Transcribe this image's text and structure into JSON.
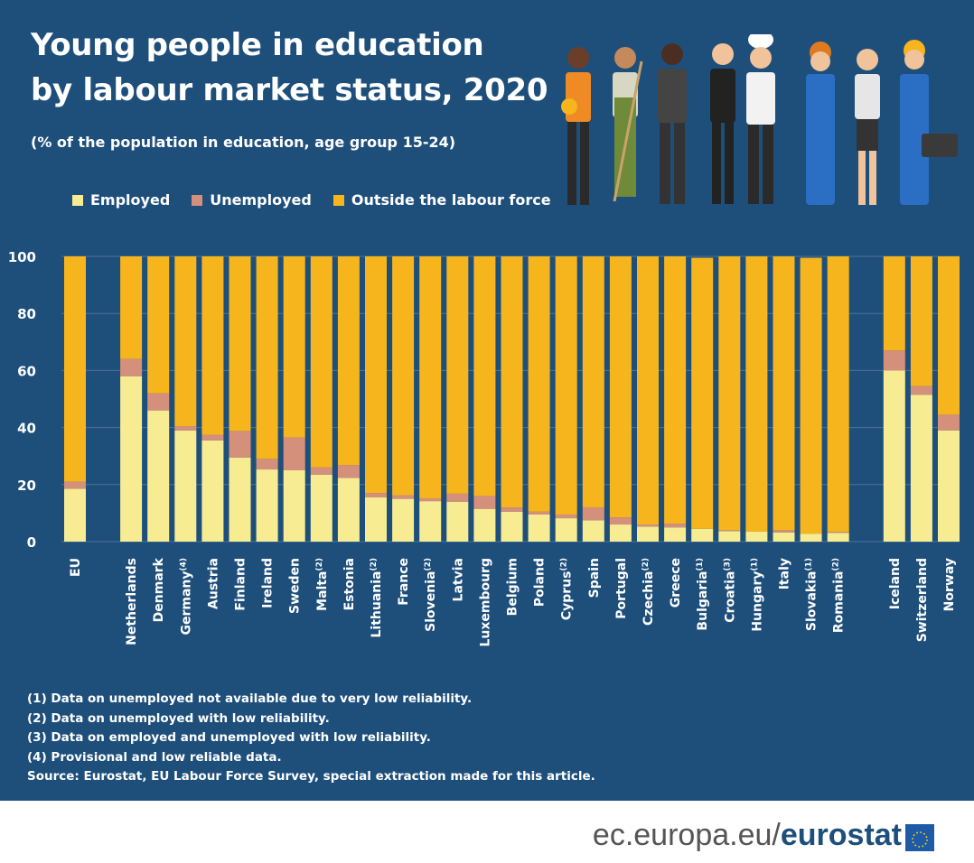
{
  "header": {
    "title_line1": "Young people in education",
    "title_line2": "by labour market status, 2020",
    "subtitle": "(% of the population in education, age group 15-24)"
  },
  "legend": [
    {
      "label": "Employed",
      "color": "#f7ec92"
    },
    {
      "label": "Unemployed",
      "color": "#d4907a"
    },
    {
      "label": "Outside the labour force",
      "color": "#f6b51c"
    }
  ],
  "colors": {
    "background": "#1e4f7b",
    "employed": "#f7ec92",
    "unemployed": "#d4907a",
    "outside": "#f6b51c",
    "gridline": "#4a7299"
  },
  "chart_data": {
    "type": "bar",
    "stacked": true,
    "ylim": [
      0,
      100
    ],
    "yticks": [
      0,
      20,
      40,
      60,
      80,
      100
    ],
    "grid": true,
    "groups": [
      [
        "EU"
      ],
      [
        "Netherlands",
        "Denmark",
        "Germany",
        "Austria",
        "Finland",
        "Ireland",
        "Sweden",
        "Malta",
        "Estonia",
        "Lithuania",
        "France",
        "Slovenia",
        "Latvia",
        "Luxembourg",
        "Belgium",
        "Poland",
        "Cyprus",
        "Spain",
        "Portugal",
        "Czechia",
        "Greece",
        "Bulgaria",
        "Croatia",
        "Hungary",
        "Italy",
        "Slovakia",
        "Romania"
      ],
      [
        "Iceland",
        "Switzerland",
        "Norway"
      ]
    ],
    "categories": [
      "EU",
      "Netherlands",
      "Denmark",
      "Germany",
      "Austria",
      "Finland",
      "Ireland",
      "Sweden",
      "Malta",
      "Estonia",
      "Lithuania",
      "France",
      "Slovenia",
      "Latvia",
      "Luxembourg",
      "Belgium",
      "Poland",
      "Cyprus",
      "Spain",
      "Portugal",
      "Czechia",
      "Greece",
      "Bulgaria",
      "Croatia",
      "Hungary",
      "Italy",
      "Slovakia",
      "Romania",
      "Iceland",
      "Switzerland",
      "Norway"
    ],
    "category_notes": [
      "",
      "",
      "",
      "(4)",
      "",
      "",
      "",
      "",
      "(2)",
      "",
      "(2)",
      "",
      "(2)",
      "",
      "",
      "",
      "",
      "(2)",
      "",
      "",
      "(2)",
      "",
      "(1)",
      "(3)",
      "(1)",
      "",
      "(1)",
      "(2)",
      "",
      "",
      ""
    ],
    "series": [
      {
        "name": "Employed",
        "values": [
          18.5,
          58.0,
          46.0,
          39.0,
          35.5,
          29.5,
          25.3,
          25.0,
          23.5,
          22.3,
          15.5,
          15.0,
          14.2,
          14.0,
          11.5,
          10.5,
          9.5,
          8.2,
          7.5,
          6.0,
          5.3,
          5.0,
          4.5,
          3.7,
          3.5,
          3.2,
          2.8,
          3.1,
          60.0,
          51.5,
          39.0
        ]
      },
      {
        "name": "Unemployed",
        "values": [
          2.5,
          6.0,
          6.0,
          1.5,
          2.0,
          9.3,
          3.7,
          11.5,
          2.5,
          4.5,
          1.5,
          1.3,
          1.0,
          2.8,
          4.5,
          1.5,
          1.0,
          1.3,
          4.5,
          2.5,
          0.7,
          1.3,
          0.0,
          0.3,
          0.0,
          0.8,
          0.0,
          0.3,
          7.0,
          3.0,
          5.5
        ]
      },
      {
        "name": "Outside the labour force",
        "values": [
          79.0,
          36.0,
          48.0,
          59.5,
          62.5,
          61.2,
          71.0,
          63.5,
          74.0,
          73.2,
          83.0,
          83.7,
          84.8,
          83.2,
          84.0,
          88.0,
          89.5,
          90.5,
          88.0,
          91.5,
          94.0,
          93.7,
          95.0,
          96.0,
          96.5,
          96.0,
          96.7,
          96.6,
          33.0,
          45.5,
          55.5
        ]
      }
    ]
  },
  "footnotes": [
    "(1) Data on unemployed not available due to very low reliability.",
    "(2) Data on unemployed with low reliability.",
    "(3) Data on employed and unemployed with low reliability.",
    "(4) Provisional and low reliable data.",
    "Source: Eurostat, EU Labour Force Survey, special extraction made for this article."
  ],
  "branding": {
    "domain": "ec.europa.eu/",
    "name": "eurostat",
    "flag_icon": "eu-flag-icon"
  }
}
